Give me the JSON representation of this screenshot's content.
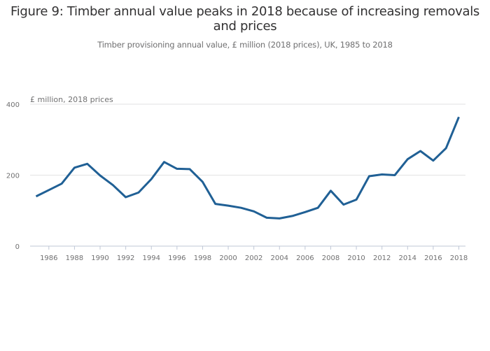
{
  "chart_data": {
    "type": "line",
    "title": "Figure 9: Timber annual value peaks in 2018 because of increasing removals and prices",
    "subtitle": "Timber provisioning annual value, £ million (2018 prices), UK, 1985 to 2018",
    "xlabel": "",
    "ylabel": "£ million, 2018 prices",
    "ylim": [
      0,
      400
    ],
    "xlim": [
      1985,
      2018
    ],
    "grid": true,
    "legend": "none",
    "y_ticks": [
      0,
      200,
      400
    ],
    "x_ticks": [
      1986,
      1988,
      1990,
      1992,
      1994,
      1996,
      1998,
      2000,
      2002,
      2004,
      2006,
      2008,
      2010,
      2012,
      2014,
      2016,
      2018
    ],
    "x": [
      1985,
      1986,
      1987,
      1988,
      1989,
      1990,
      1991,
      1992,
      1993,
      1994,
      1995,
      1996,
      1997,
      1998,
      1999,
      2000,
      2001,
      2002,
      2003,
      2004,
      2005,
      2006,
      2007,
      2008,
      2009,
      2010,
      2011,
      2012,
      2013,
      2014,
      2015,
      2016,
      2017,
      2018
    ],
    "series": [
      {
        "name": "Timber annual value",
        "color": "#206095",
        "values": [
          140,
          158,
          176,
          221,
          232,
          199,
          172,
          138,
          151,
          189,
          237,
          218,
          217,
          181,
          119,
          114,
          108,
          98,
          80,
          78,
          85,
          96,
          108,
          156,
          117,
          131,
          197,
          202,
          200,
          245,
          268,
          241,
          276,
          364
        ]
      }
    ]
  }
}
